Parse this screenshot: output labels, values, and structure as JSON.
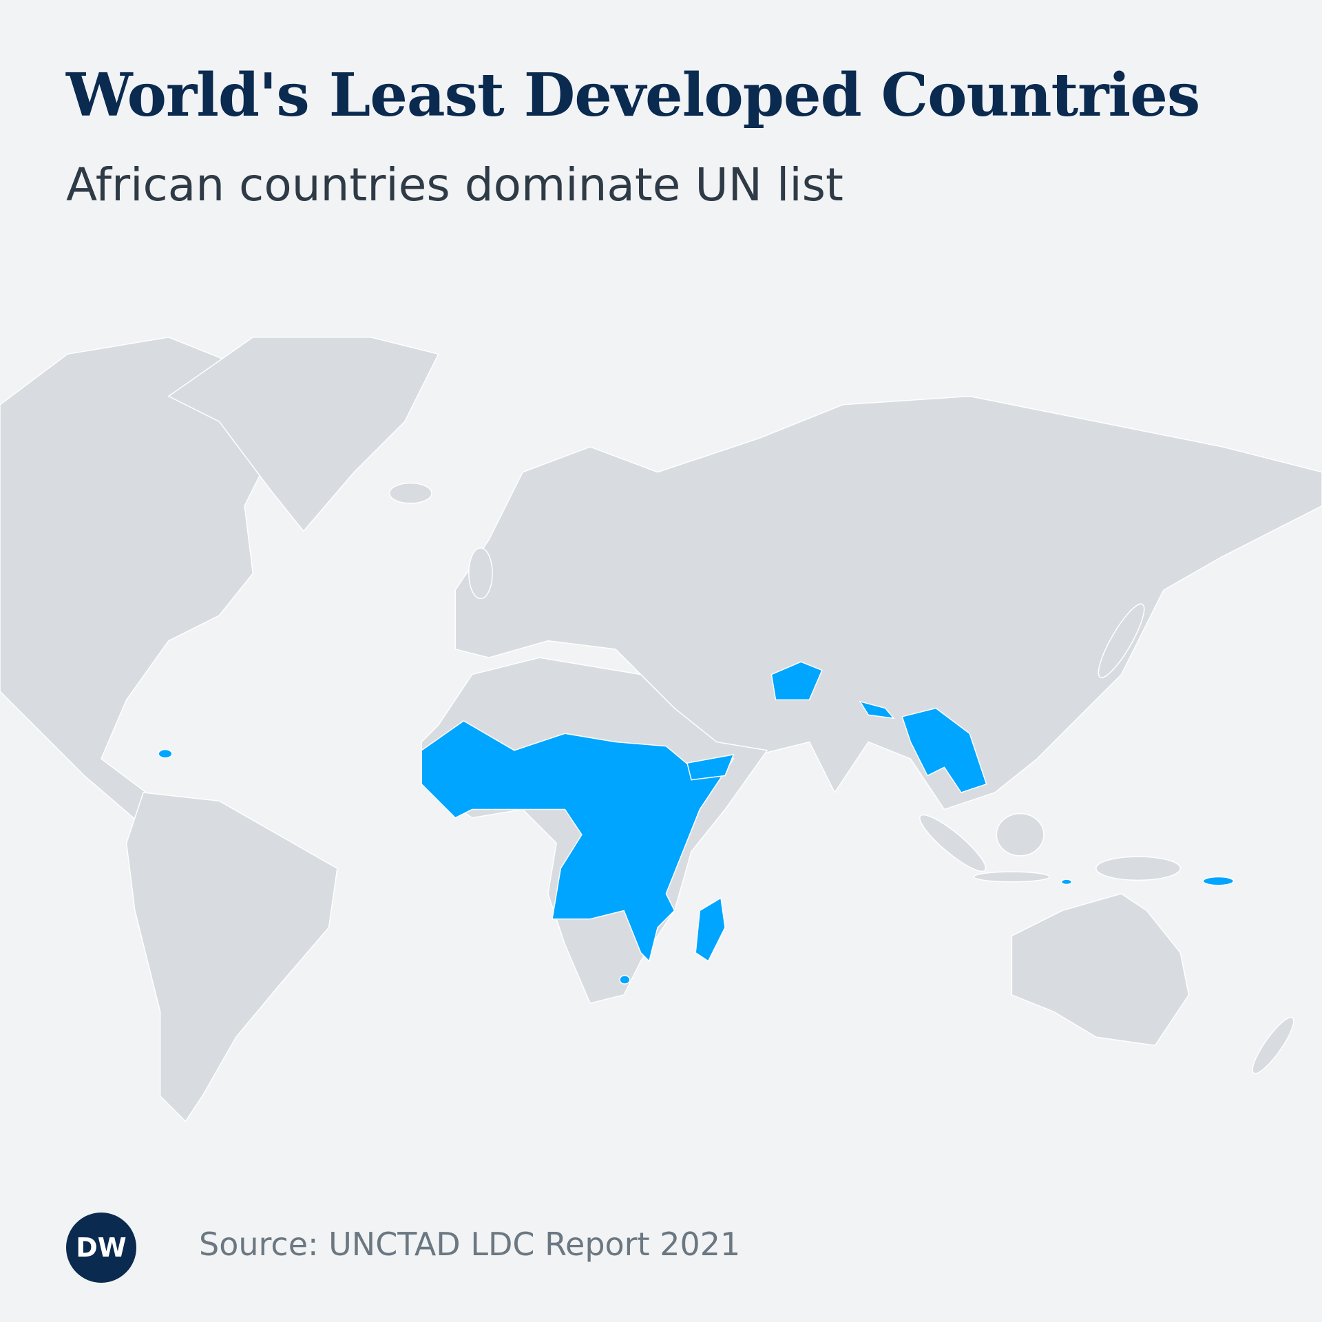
{
  "header": {
    "title": "World's Least Developed Countries",
    "subtitle": "African countries dominate UN list"
  },
  "footer": {
    "logo": "DW",
    "source": "Source: UNCTAD LDC Report 2021"
  }
}
